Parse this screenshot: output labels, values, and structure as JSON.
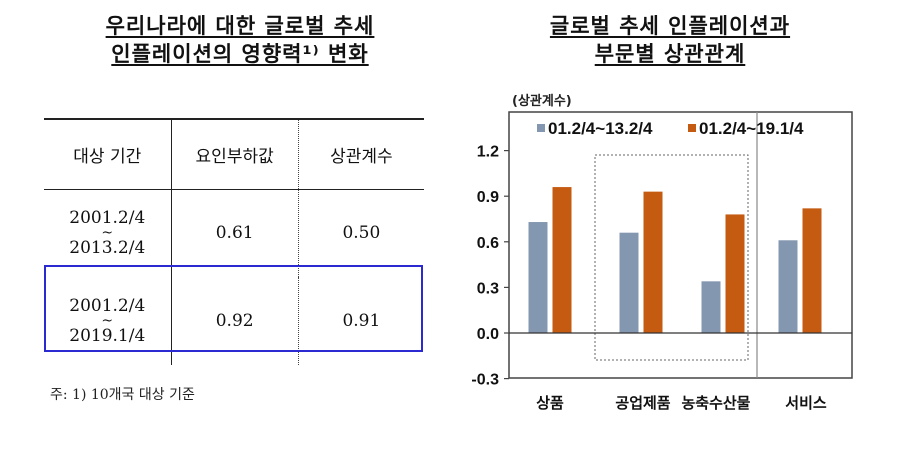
{
  "left_panel": {
    "title_line1": "우리나라에 대한 글로벌 추세",
    "title_line2": "인플레이션의 영향력¹⁾ 변화",
    "table": {
      "headers": [
        "대상 기간",
        "요인부하값",
        "상관계수"
      ],
      "rows": [
        {
          "period_start": "2001.2/4",
          "period_sep": "~",
          "period_end": "2013.2/4",
          "factor_loading": "0.61",
          "correlation": "0.50",
          "highlighted": false
        },
        {
          "period_start": "2001.2/4",
          "period_sep": "~",
          "period_end": "2019.1/4",
          "factor_loading": "0.92",
          "correlation": "0.91",
          "highlighted": true
        }
      ]
    },
    "footnote": "주: 1) 10개국 대상 기준",
    "highlight_color": "#2a2ad0"
  },
  "right_panel": {
    "title_line1": "글로벌 추세 인플레이션과",
    "title_line2": "부문별 상관관계",
    "unit_label": "(상관계수)"
  },
  "chart_data": {
    "type": "bar",
    "title": "글로벌 추세 인플레이션과 부문별 상관관계",
    "ylabel": "(상관계수)",
    "xlabel": "",
    "categories": [
      "상품",
      "공업제품",
      "농축수산물",
      "서비스"
    ],
    "series": [
      {
        "name": "01.2/4~13.2/4",
        "color": "#8497b0",
        "values": [
          0.73,
          0.66,
          0.34,
          0.61
        ]
      },
      {
        "name": "01.2/4~19.1/4",
        "color": "#c55a11",
        "values": [
          0.96,
          0.93,
          0.78,
          0.82
        ]
      }
    ],
    "ylim": [
      -0.3,
      1.2
    ],
    "yticks": [
      "1.2",
      "0.9",
      "0.6",
      "0.3",
      "0.0",
      "-0.3"
    ],
    "grid": false,
    "legend_position": "top-inside",
    "annotations": [
      "dashed box grouping 공업제품 and 농축수산물",
      "vertical divider before 서비스"
    ]
  }
}
